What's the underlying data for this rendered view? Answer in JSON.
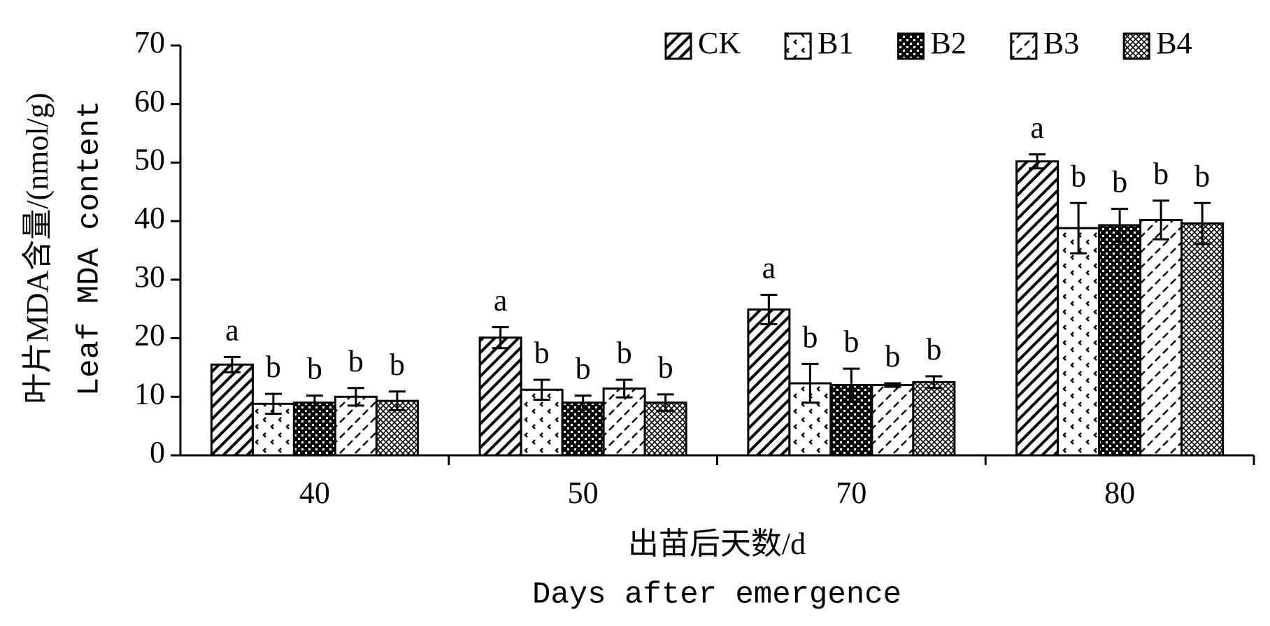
{
  "chart_data": {
    "type": "bar",
    "categories": [
      "40",
      "50",
      "70",
      "80"
    ],
    "x_label": [
      "出苗后天数/d",
      "Days after emergence"
    ],
    "y_label": [
      "叶片MDA含量/(nmol/g)",
      "Leaf MDA content"
    ],
    "ylim": [
      0,
      70
    ],
    "yticks": [
      0,
      10,
      20,
      30,
      40,
      50,
      60,
      70
    ],
    "legend": "top-right",
    "series": [
      {
        "name": "CK",
        "color": "#000000",
        "values": [
          15.5,
          20.1,
          24.9,
          50.2
        ],
        "errors": [
          1.3,
          1.8,
          2.5,
          1.2
        ],
        "letters": [
          "a",
          "a",
          "a",
          "a"
        ]
      },
      {
        "name": "B1",
        "color": "#000000",
        "values": [
          8.8,
          11.2,
          12.3,
          38.8
        ],
        "errors": [
          1.7,
          1.7,
          3.3,
          4.3
        ],
        "letters": [
          "b",
          "b",
          "b",
          "b"
        ]
      },
      {
        "name": "B2",
        "color": "#000000",
        "values": [
          9.0,
          9.0,
          12.0,
          39.3
        ],
        "errors": [
          1.2,
          1.2,
          2.8,
          2.8
        ],
        "letters": [
          "b",
          "b",
          "b",
          "b"
        ]
      },
      {
        "name": "B3",
        "color": "#000000",
        "values": [
          10.0,
          11.4,
          12.0,
          40.2
        ],
        "errors": [
          1.5,
          1.5,
          0.3,
          3.3
        ],
        "letters": [
          "b",
          "b",
          "b",
          "b"
        ]
      },
      {
        "name": "B4",
        "color": "#000000",
        "values": [
          9.3,
          9.0,
          12.5,
          39.6
        ],
        "errors": [
          1.6,
          1.4,
          1.0,
          3.5
        ],
        "letters": [
          "b",
          "b",
          "b",
          "b"
        ]
      }
    ]
  }
}
